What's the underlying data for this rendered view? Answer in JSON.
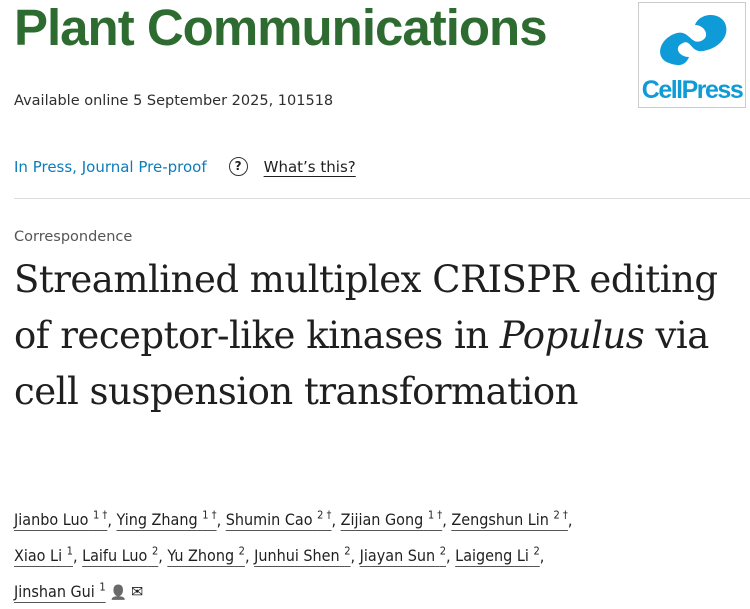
{
  "journal": {
    "title": "Plant Communications",
    "publisher_logo_text": "CellPress",
    "brand_color": "#2e6b30",
    "logo_color": "#0f9bd7"
  },
  "availability": "Available online 5 September 2025, 101518",
  "status": {
    "label": "In Press, Journal Pre-proof",
    "help_icon": "question-circle-icon",
    "whats_this": "What’s this?"
  },
  "article": {
    "type": "Correspondence",
    "title_part1": "Streamlined multiplex CRISPR editing of receptor-like kinases in ",
    "title_italic": "Populus",
    "title_part2": " via cell suspension transformation"
  },
  "authors": [
    {
      "name": "Jianbo Luo",
      "sup": "1 †"
    },
    {
      "name": "Ying Zhang",
      "sup": "1 †"
    },
    {
      "name": "Shumin Cao",
      "sup": "2 †"
    },
    {
      "name": "Zijian Gong",
      "sup": "1 †"
    },
    {
      "name": "Zengshun Lin",
      "sup": "2 †"
    },
    {
      "name": "Xiao Li",
      "sup": "1"
    },
    {
      "name": "Laifu Luo",
      "sup": "2"
    },
    {
      "name": "Yu Zhong",
      "sup": "2"
    },
    {
      "name": "Junhui Shen",
      "sup": "2"
    },
    {
      "name": "Jiayan Sun",
      "sup": "2"
    },
    {
      "name": "Laigeng Li",
      "sup": "2"
    },
    {
      "name": "Jinshan Gui",
      "sup": "1"
    }
  ]
}
